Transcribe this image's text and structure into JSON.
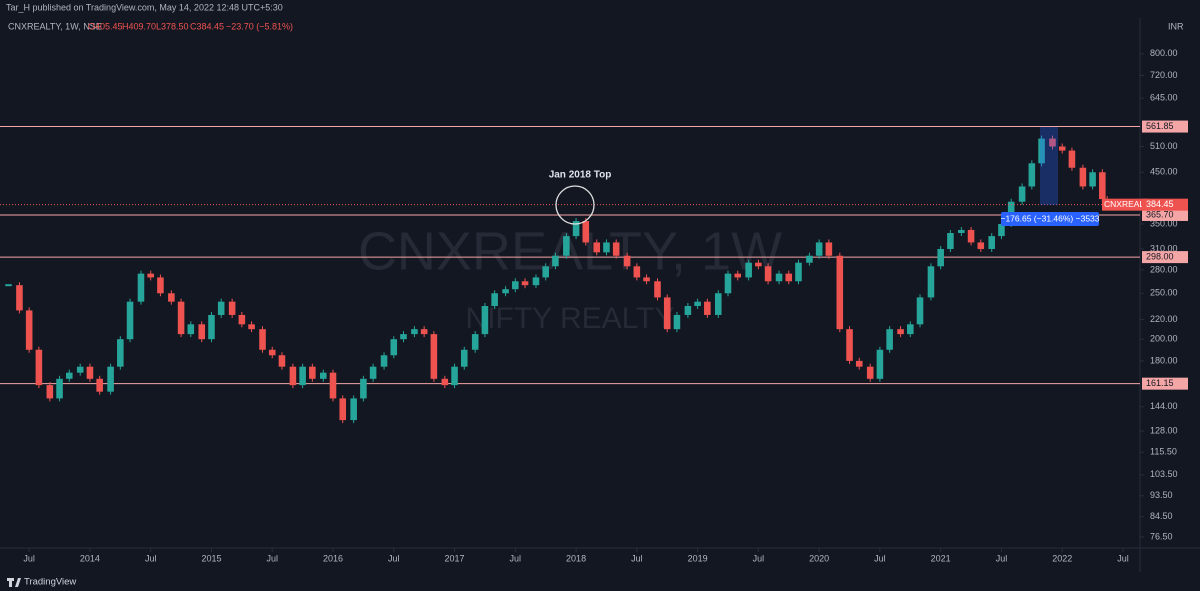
{
  "header": {
    "publisher": "Tar_H published on TradingView.com, May 14, 2022 12:48 UTC+5:30",
    "symbol": "CNXREALTY, 1W, NSE",
    "open": "O405.45",
    "high": "H409.70",
    "low": "L378.50",
    "close": "C384.45",
    "change": "−23.70 (−5.81%)",
    "currency": "INR"
  },
  "footer": {
    "brand": "TradingView"
  },
  "chart_data": {
    "type": "candlestick",
    "title": "CNXREALTY, 1W",
    "subtitle": "NIFTY REALTY",
    "log_scale": true,
    "up_color": "#26a69a",
    "down_color": "#ef5350",
    "level_color": "#f4a6a6",
    "x": [
      2013.33,
      2013.42,
      2013.5,
      2013.58,
      2013.67,
      2013.75,
      2013.83,
      2013.92,
      2014,
      2014.08,
      2014.17,
      2014.25,
      2014.33,
      2014.42,
      2014.5,
      2014.58,
      2014.67,
      2014.75,
      2014.83,
      2014.92,
      2015,
      2015.08,
      2015.17,
      2015.25,
      2015.33,
      2015.42,
      2015.5,
      2015.58,
      2015.67,
      2015.75,
      2015.83,
      2015.92,
      2016,
      2016.08,
      2016.17,
      2016.25,
      2016.33,
      2016.42,
      2016.5,
      2016.58,
      2016.67,
      2016.75,
      2016.83,
      2016.92,
      2017,
      2017.08,
      2017.17,
      2017.25,
      2017.33,
      2017.42,
      2017.5,
      2017.58,
      2017.67,
      2017.75,
      2017.83,
      2017.92,
      2018,
      2018.08,
      2018.17,
      2018.25,
      2018.33,
      2018.42,
      2018.5,
      2018.58,
      2018.67,
      2018.75,
      2018.83,
      2018.92,
      2019,
      2019.08,
      2019.17,
      2019.25,
      2019.33,
      2019.42,
      2019.5,
      2019.58,
      2019.67,
      2019.75,
      2019.83,
      2019.92,
      2020,
      2020.08,
      2020.17,
      2020.25,
      2020.33,
      2020.42,
      2020.5,
      2020.58,
      2020.67,
      2020.75,
      2020.83,
      2020.92,
      2021,
      2021.08,
      2021.17,
      2021.25,
      2021.33,
      2021.42,
      2021.5,
      2021.58,
      2021.67,
      2021.75,
      2021.83,
      2021.92,
      2022,
      2022.08,
      2022.17,
      2022.25,
      2022.33,
      2022.37
    ],
    "close": [
      260,
      230,
      190,
      160,
      150,
      165,
      170,
      175,
      165,
      155,
      175,
      200,
      240,
      275,
      270,
      250,
      240,
      205,
      215,
      200,
      225,
      240,
      225,
      215,
      210,
      190,
      185,
      175,
      160,
      175,
      165,
      170,
      150,
      135,
      150,
      165,
      175,
      185,
      200,
      205,
      210,
      205,
      165,
      160,
      175,
      190,
      205,
      235,
      250,
      255,
      265,
      260,
      270,
      285,
      300,
      330,
      355,
      320,
      305,
      320,
      300,
      285,
      270,
      265,
      245,
      210,
      225,
      235,
      240,
      225,
      250,
      275,
      270,
      290,
      285,
      265,
      275,
      265,
      290,
      300,
      320,
      300,
      210,
      180,
      175,
      165,
      190,
      210,
      205,
      215,
      245,
      285,
      310,
      335,
      340,
      320,
      310,
      330,
      350,
      390,
      420,
      470,
      530,
      510,
      500,
      460,
      420,
      450,
      395,
      384.45
    ],
    "last_label": "CNXREALTY",
    "xlim": [
      2013.26,
      2022.64
    ],
    "ylim": [
      73.6,
      952
    ],
    "xticks": [
      {
        "value": 2013.5,
        "label": "Jul"
      },
      2014,
      {
        "value": 2014.5,
        "label": "Jul"
      },
      2015,
      {
        "value": 2015.5,
        "label": "Jul"
      },
      2016,
      {
        "value": 2016.5,
        "label": "Jul"
      },
      2017,
      {
        "value": 2017.5,
        "label": "Jul"
      },
      2018,
      {
        "value": 2018.5,
        "label": "Jul"
      },
      2019,
      {
        "value": 2019.5,
        "label": "Jul"
      },
      2020,
      {
        "value": 2020.5,
        "label": "Jul"
      },
      2021,
      {
        "value": 2021.5,
        "label": "Jul"
      },
      2022,
      {
        "value": 2022.5,
        "label": "Jul"
      }
    ],
    "yticks": [
      {
        "value": 800,
        "label": "800.00"
      },
      {
        "value": 720,
        "label": "720.00"
      },
      {
        "value": 645,
        "label": "645.00"
      },
      {
        "value": 510,
        "label": "510.00"
      },
      {
        "value": 450,
        "label": "450.00"
      },
      {
        "value": 350,
        "label": "350.00"
      },
      {
        "value": 310,
        "label": "310.00"
      },
      {
        "value": 280,
        "label": "280.00"
      },
      {
        "value": 250,
        "label": "250.00"
      },
      {
        "value": 220,
        "label": "220.00"
      },
      {
        "value": 200,
        "label": "200.00"
      },
      {
        "value": 180,
        "label": "180.00"
      },
      {
        "value": 144,
        "label": "144.00"
      },
      {
        "value": 128,
        "label": "128.00"
      },
      {
        "value": 115.5,
        "label": "115.50"
      },
      {
        "value": 103.5,
        "label": "103.50"
      },
      {
        "value": 93.5,
        "label": "93.50"
      },
      {
        "value": 84.5,
        "label": "84.50"
      },
      {
        "value": 76.5,
        "label": "76.50"
      }
    ],
    "levels": [
      561.85,
      {
        "value": 365.7,
        "label": "365.70"
      },
      {
        "value": 298,
        "label": "298.00"
      },
      161.15
    ],
    "annotations": {
      "top_label": "Jan 2018 Top",
      "measure": "−176.65 (−31.46%) −3533"
    }
  }
}
